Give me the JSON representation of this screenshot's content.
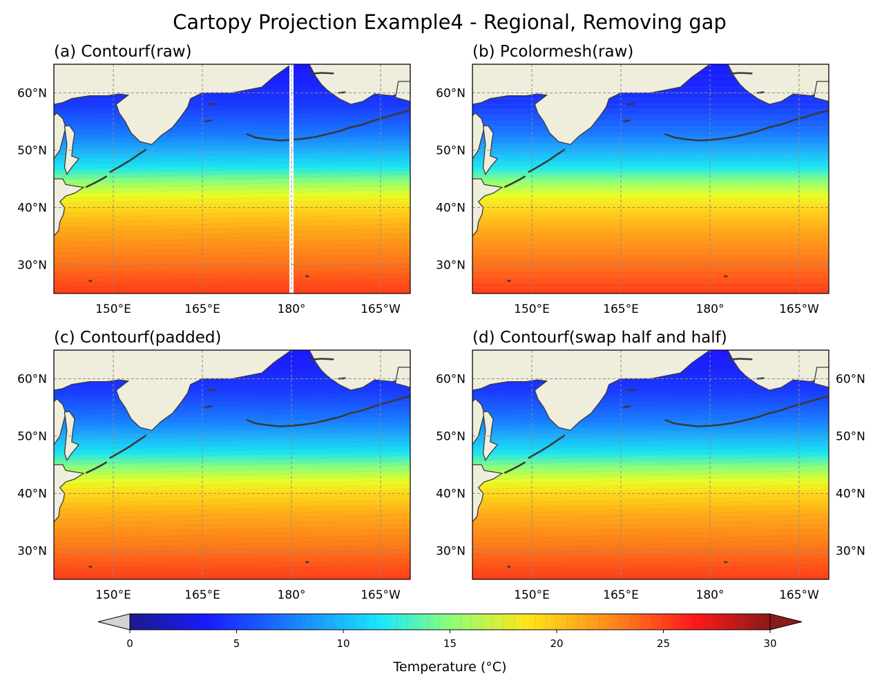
{
  "figure": {
    "title": "Cartopy Projection Example4 - Regional, Removing gap"
  },
  "chart_data": [
    {
      "type": "heatmap",
      "title": "(a) Contourf(raw)",
      "method": "contourf",
      "lon_range": [
        "140°E",
        "200°E (160°W)"
      ],
      "lat_range": [
        25,
        65
      ],
      "xticks": [
        "150°E",
        "165°E",
        "180°",
        "165°W"
      ],
      "yticks": [
        "30°N",
        "40°N",
        "50°N",
        "60°N"
      ],
      "ytick_side": "left",
      "gridlines": true,
      "gap_at": "180°",
      "value_summary": {
        "south_25N": 26,
        "at_35N": 22,
        "at_40N": 15,
        "at_45N": 9,
        "at_50N": 6,
        "north_60N": 4
      }
    },
    {
      "type": "heatmap",
      "title": "(b) Pcolormesh(raw)",
      "method": "pcolormesh",
      "lon_range": [
        "140°E",
        "200°E (160°W)"
      ],
      "lat_range": [
        25,
        65
      ],
      "xticks": [
        "150°E",
        "165°E",
        "180°",
        "165°W"
      ],
      "yticks": [
        "30°N",
        "40°N",
        "50°N",
        "60°N"
      ],
      "ytick_side": "left",
      "gridlines": true,
      "gap_at": null,
      "value_summary": {
        "south_25N": 26,
        "at_35N": 22,
        "at_40N": 15,
        "at_45N": 9,
        "at_50N": 6,
        "north_60N": 4
      }
    },
    {
      "type": "heatmap",
      "title": "(c) Contourf(padded)",
      "method": "contourf",
      "lon_range": [
        "140°E",
        "200°E (160°W)"
      ],
      "lat_range": [
        25,
        65
      ],
      "xticks": [
        "150°E",
        "165°E",
        "180°",
        "165°W"
      ],
      "yticks": [
        "30°N",
        "40°N",
        "50°N",
        "60°N"
      ],
      "ytick_side": "left",
      "gridlines": true,
      "gap_at": null,
      "value_summary": {
        "south_25N": 26,
        "at_35N": 22,
        "at_40N": 15,
        "at_45N": 9,
        "at_50N": 6,
        "north_60N": 4
      }
    },
    {
      "type": "heatmap",
      "title": "(d) Contourf(swap half and half)",
      "method": "contourf",
      "lon_range": [
        "140°E",
        "200°E (160°W)"
      ],
      "lat_range": [
        25,
        65
      ],
      "xticks": [
        "150°E",
        "165°E",
        "180°",
        "165°W"
      ],
      "yticks": [
        "30°N",
        "40°N",
        "50°N",
        "60°N"
      ],
      "ytick_side": "both",
      "gridlines": true,
      "gap_at": null,
      "value_summary": {
        "south_25N": 26,
        "at_35N": 22,
        "at_40N": 15,
        "at_45N": 9,
        "at_50N": 6,
        "north_60N": 4
      }
    }
  ],
  "colorbar": {
    "label": "Temperature (°C)",
    "min": 0,
    "max": 30,
    "ticks": [
      "0",
      "5",
      "10",
      "15",
      "20",
      "25",
      "30"
    ],
    "extend": "both",
    "under_color": "#d3d3d3",
    "over_color": "#8b1a1a",
    "colormap_stops": [
      "#1a1a8c",
      "#1a1aff",
      "#1a8cff",
      "#1affe6",
      "#a8ff5a",
      "#ffe61a",
      "#ff8c1a",
      "#ff1a1a",
      "#8b1a1a"
    ]
  },
  "colors": {
    "land": "#efeddc",
    "coastline": "#3a3a3a",
    "gridline": "#8c8c8c",
    "gap": "#ffffff"
  }
}
